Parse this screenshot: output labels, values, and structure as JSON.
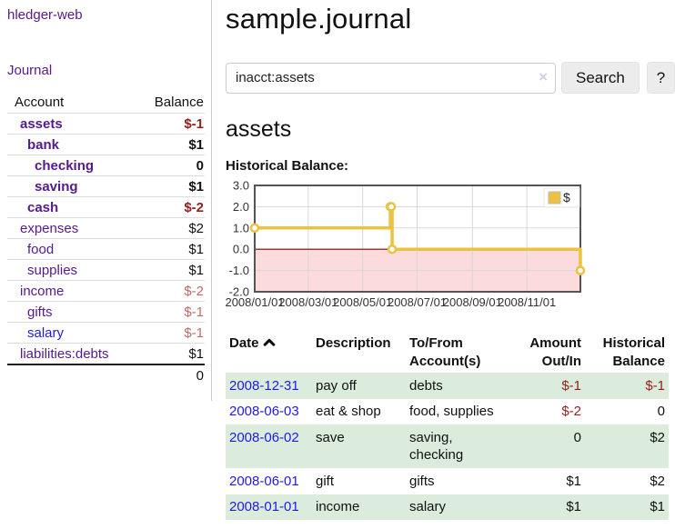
{
  "app_title": "hledger-web",
  "sidebar": {
    "journal_link": "Journal",
    "account_header": "Account",
    "balance_header": "Balance",
    "rows": [
      {
        "account": "assets",
        "balance": "$-1"
      },
      {
        "account": "bank",
        "balance": "$1"
      },
      {
        "account": "checking",
        "balance": "0"
      },
      {
        "account": "saving",
        "balance": "$1"
      },
      {
        "account": "cash",
        "balance": "$-2"
      },
      {
        "account": "expenses",
        "balance": "$2"
      },
      {
        "account": "food",
        "balance": "$1"
      },
      {
        "account": "supplies",
        "balance": "$1"
      },
      {
        "account": "income",
        "balance": "$-2"
      },
      {
        "account": "gifts",
        "balance": "$-1"
      },
      {
        "account": "salary",
        "balance": "$-1"
      },
      {
        "account": "liabilities:debts",
        "balance": "$1"
      }
    ],
    "total": "0"
  },
  "header": {
    "title": "sample.journal"
  },
  "search": {
    "value": "inacct:assets",
    "clear_icon": "×",
    "search_button": "Search",
    "help_button": "?"
  },
  "account_page": {
    "heading": "assets",
    "chart_title": "Historical Balance:"
  },
  "chart_data": {
    "type": "line",
    "step": true,
    "title": "Historical Balance",
    "series": [
      {
        "name": "$",
        "color": "#edc240",
        "points": [
          [
            "2008-01-01",
            1
          ],
          [
            "2008-06-01",
            2
          ],
          [
            "2008-06-02",
            2
          ],
          [
            "2008-06-03",
            0
          ],
          [
            "2008-12-31",
            -1
          ]
        ]
      }
    ],
    "x_range": [
      "2008-01-01",
      "2008-12-31"
    ],
    "ylim": [
      -2,
      3
    ],
    "y_ticks": [
      3.0,
      2.0,
      1.0,
      0.0,
      -1.0,
      -2.0
    ],
    "x_tick_labels": [
      "2008/01/01",
      "2008/03/01",
      "2008/05/01",
      "2008/07/01",
      "2008/09/01",
      "2008/11/01"
    ],
    "grid": true,
    "legend_position": "top-right",
    "negative_fill": "#fbdbdb",
    "zero_line_color": "#8b0000",
    "border_color": "#545454"
  },
  "register": {
    "headers": {
      "date": "Date",
      "description": "Description",
      "tofrom": "To/From Account(s)",
      "amount": "Amount Out/In",
      "balance": "Historical Balance"
    },
    "rows": [
      {
        "date": "2008-12-31",
        "description": "pay off",
        "tofrom": "debts",
        "amount": "$-1",
        "balance": "$-1"
      },
      {
        "date": "2008-06-03",
        "description": "eat & shop",
        "tofrom": "food, supplies",
        "amount": "$-2",
        "balance": "0"
      },
      {
        "date": "2008-06-02",
        "description": "save",
        "tofrom": "saving,\nchecking",
        "amount": "0",
        "balance": "$2"
      },
      {
        "date": "2008-06-01",
        "description": "gift",
        "tofrom": "gifts",
        "amount": "$1",
        "balance": "$2"
      },
      {
        "date": "2008-01-01",
        "description": "income",
        "tofrom": "salary",
        "amount": "$1",
        "balance": "$1"
      }
    ]
  }
}
